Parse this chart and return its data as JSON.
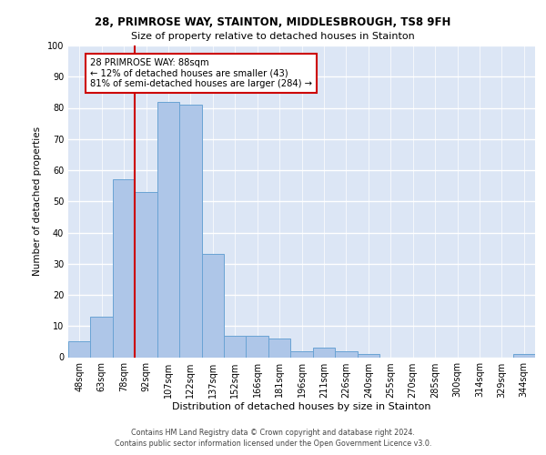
{
  "title1": "28, PRIMROSE WAY, STAINTON, MIDDLESBROUGH, TS8 9FH",
  "title2": "Size of property relative to detached houses in Stainton",
  "xlabel": "Distribution of detached houses by size in Stainton",
  "ylabel": "Number of detached properties",
  "bar_color": "#aec6e8",
  "bar_edge_color": "#6aa3d4",
  "background_color": "#dce6f5",
  "grid_color": "#ffffff",
  "categories": [
    "48sqm",
    "63sqm",
    "78sqm",
    "92sqm",
    "107sqm",
    "122sqm",
    "137sqm",
    "152sqm",
    "166sqm",
    "181sqm",
    "196sqm",
    "211sqm",
    "226sqm",
    "240sqm",
    "255sqm",
    "270sqm",
    "285sqm",
    "300sqm",
    "314sqm",
    "329sqm",
    "344sqm"
  ],
  "values": [
    5,
    13,
    57,
    53,
    82,
    81,
    33,
    7,
    7,
    6,
    2,
    3,
    2,
    1,
    0,
    0,
    0,
    0,
    0,
    0,
    1
  ],
  "vline_x_idx": 2.5,
  "vline_color": "#cc0000",
  "annotation_text": "28 PRIMROSE WAY: 88sqm\n← 12% of detached houses are smaller (43)\n81% of semi-detached houses are larger (284) →",
  "annotation_box_color": "#ffffff",
  "annotation_box_edge": "#cc0000",
  "ylim": [
    0,
    100
  ],
  "yticks": [
    0,
    10,
    20,
    30,
    40,
    50,
    60,
    70,
    80,
    90,
    100
  ],
  "footer1": "Contains HM Land Registry data © Crown copyright and database right 2024.",
  "footer2": "Contains public sector information licensed under the Open Government Licence v3.0."
}
